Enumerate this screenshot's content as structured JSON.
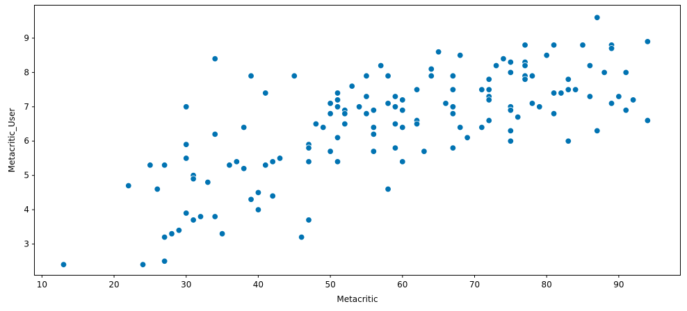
{
  "chart_data": {
    "type": "scatter",
    "xlabel": "Metacritic",
    "ylabel": "Metacritic_User",
    "xlim": [
      9,
      98.5
    ],
    "ylim": [
      2.1,
      9.95
    ],
    "x_ticks": [
      10,
      20,
      30,
      40,
      50,
      60,
      70,
      80,
      90
    ],
    "y_ticks": [
      3,
      4,
      5,
      6,
      7,
      8,
      9
    ],
    "grid": false,
    "marker_color": "#0173b2",
    "points": [
      {
        "x": 13,
        "y": 2.4
      },
      {
        "x": 22,
        "y": 4.7
      },
      {
        "x": 24,
        "y": 2.4
      },
      {
        "x": 25,
        "y": 5.3
      },
      {
        "x": 26,
        "y": 4.6
      },
      {
        "x": 27,
        "y": 5.3
      },
      {
        "x": 27,
        "y": 3.2
      },
      {
        "x": 27,
        "y": 2.5
      },
      {
        "x": 28,
        "y": 3.3
      },
      {
        "x": 29,
        "y": 3.4
      },
      {
        "x": 30,
        "y": 7.0
      },
      {
        "x": 30,
        "y": 5.9
      },
      {
        "x": 30,
        "y": 5.5
      },
      {
        "x": 30,
        "y": 3.9
      },
      {
        "x": 31,
        "y": 5.0
      },
      {
        "x": 31,
        "y": 4.9
      },
      {
        "x": 31,
        "y": 3.7
      },
      {
        "x": 32,
        "y": 3.8
      },
      {
        "x": 33,
        "y": 4.8
      },
      {
        "x": 34,
        "y": 8.4
      },
      {
        "x": 34,
        "y": 6.2
      },
      {
        "x": 34,
        "y": 3.8
      },
      {
        "x": 35,
        "y": 3.3
      },
      {
        "x": 36,
        "y": 5.3
      },
      {
        "x": 37,
        "y": 5.4
      },
      {
        "x": 38,
        "y": 6.4
      },
      {
        "x": 38,
        "y": 5.2
      },
      {
        "x": 39,
        "y": 7.9
      },
      {
        "x": 39,
        "y": 4.3
      },
      {
        "x": 40,
        "y": 4.5
      },
      {
        "x": 40,
        "y": 4.0
      },
      {
        "x": 41,
        "y": 7.4
      },
      {
        "x": 41,
        "y": 5.3
      },
      {
        "x": 42,
        "y": 5.4
      },
      {
        "x": 42,
        "y": 4.4
      },
      {
        "x": 43,
        "y": 5.5
      },
      {
        "x": 45,
        "y": 7.9
      },
      {
        "x": 46,
        "y": 3.2
      },
      {
        "x": 47,
        "y": 5.9
      },
      {
        "x": 47,
        "y": 5.8
      },
      {
        "x": 47,
        "y": 5.4
      },
      {
        "x": 47,
        "y": 3.7
      },
      {
        "x": 48,
        "y": 6.5
      },
      {
        "x": 49,
        "y": 6.4
      },
      {
        "x": 50,
        "y": 7.1
      },
      {
        "x": 50,
        "y": 6.8
      },
      {
        "x": 50,
        "y": 5.7
      },
      {
        "x": 51,
        "y": 7.4
      },
      {
        "x": 51,
        "y": 7.2
      },
      {
        "x": 51,
        "y": 7.0
      },
      {
        "x": 51,
        "y": 6.1
      },
      {
        "x": 51,
        "y": 5.4
      },
      {
        "x": 52,
        "y": 6.9
      },
      {
        "x": 52,
        "y": 6.8
      },
      {
        "x": 52,
        "y": 6.5
      },
      {
        "x": 53,
        "y": 7.6
      },
      {
        "x": 54,
        "y": 7.0
      },
      {
        "x": 55,
        "y": 7.9
      },
      {
        "x": 55,
        "y": 7.3
      },
      {
        "x": 55,
        "y": 6.8
      },
      {
        "x": 56,
        "y": 6.9
      },
      {
        "x": 56,
        "y": 6.4
      },
      {
        "x": 56,
        "y": 6.2
      },
      {
        "x": 56,
        "y": 5.7
      },
      {
        "x": 57,
        "y": 8.2
      },
      {
        "x": 58,
        "y": 7.9
      },
      {
        "x": 58,
        "y": 7.1
      },
      {
        "x": 58,
        "y": 4.6
      },
      {
        "x": 59,
        "y": 7.3
      },
      {
        "x": 59,
        "y": 7.0
      },
      {
        "x": 59,
        "y": 6.5
      },
      {
        "x": 59,
        "y": 5.8
      },
      {
        "x": 60,
        "y": 7.2
      },
      {
        "x": 60,
        "y": 6.9
      },
      {
        "x": 60,
        "y": 6.4
      },
      {
        "x": 60,
        "y": 5.4
      },
      {
        "x": 62,
        "y": 7.5
      },
      {
        "x": 62,
        "y": 6.6
      },
      {
        "x": 62,
        "y": 6.5
      },
      {
        "x": 63,
        "y": 5.7
      },
      {
        "x": 64,
        "y": 8.1
      },
      {
        "x": 64,
        "y": 7.9
      },
      {
        "x": 65,
        "y": 8.6
      },
      {
        "x": 66,
        "y": 7.1
      },
      {
        "x": 67,
        "y": 7.9
      },
      {
        "x": 67,
        "y": 7.5
      },
      {
        "x": 67,
        "y": 7.0
      },
      {
        "x": 67,
        "y": 6.8
      },
      {
        "x": 67,
        "y": 5.8
      },
      {
        "x": 68,
        "y": 8.5
      },
      {
        "x": 68,
        "y": 6.4
      },
      {
        "x": 69,
        "y": 6.1
      },
      {
        "x": 71,
        "y": 7.5
      },
      {
        "x": 71,
        "y": 6.4
      },
      {
        "x": 72,
        "y": 7.8
      },
      {
        "x": 72,
        "y": 7.5
      },
      {
        "x": 72,
        "y": 7.3
      },
      {
        "x": 72,
        "y": 7.2
      },
      {
        "x": 72,
        "y": 6.6
      },
      {
        "x": 73,
        "y": 8.2
      },
      {
        "x": 74,
        "y": 8.4
      },
      {
        "x": 75,
        "y": 8.3
      },
      {
        "x": 75,
        "y": 8.0
      },
      {
        "x": 75,
        "y": 7.0
      },
      {
        "x": 75,
        "y": 6.9
      },
      {
        "x": 75,
        "y": 6.3
      },
      {
        "x": 75,
        "y": 6.0
      },
      {
        "x": 76,
        "y": 6.7
      },
      {
        "x": 77,
        "y": 8.8
      },
      {
        "x": 77,
        "y": 8.3
      },
      {
        "x": 77,
        "y": 8.2
      },
      {
        "x": 77,
        "y": 7.9
      },
      {
        "x": 77,
        "y": 7.8
      },
      {
        "x": 78,
        "y": 7.9
      },
      {
        "x": 78,
        "y": 7.1
      },
      {
        "x": 79,
        "y": 7.0
      },
      {
        "x": 80,
        "y": 8.5
      },
      {
        "x": 81,
        "y": 8.8
      },
      {
        "x": 81,
        "y": 7.4
      },
      {
        "x": 81,
        "y": 6.8
      },
      {
        "x": 82,
        "y": 7.4
      },
      {
        "x": 83,
        "y": 7.8
      },
      {
        "x": 83,
        "y": 7.5
      },
      {
        "x": 83,
        "y": 6.0
      },
      {
        "x": 84,
        "y": 7.5
      },
      {
        "x": 85,
        "y": 8.8
      },
      {
        "x": 86,
        "y": 8.2
      },
      {
        "x": 86,
        "y": 7.3
      },
      {
        "x": 87,
        "y": 9.6
      },
      {
        "x": 87,
        "y": 6.3
      },
      {
        "x": 88,
        "y": 8.0
      },
      {
        "x": 89,
        "y": 8.8
      },
      {
        "x": 89,
        "y": 8.7
      },
      {
        "x": 89,
        "y": 7.1
      },
      {
        "x": 90,
        "y": 7.3
      },
      {
        "x": 91,
        "y": 8.0
      },
      {
        "x": 91,
        "y": 6.9
      },
      {
        "x": 92,
        "y": 7.2
      },
      {
        "x": 94,
        "y": 8.9
      },
      {
        "x": 94,
        "y": 6.6
      }
    ]
  }
}
